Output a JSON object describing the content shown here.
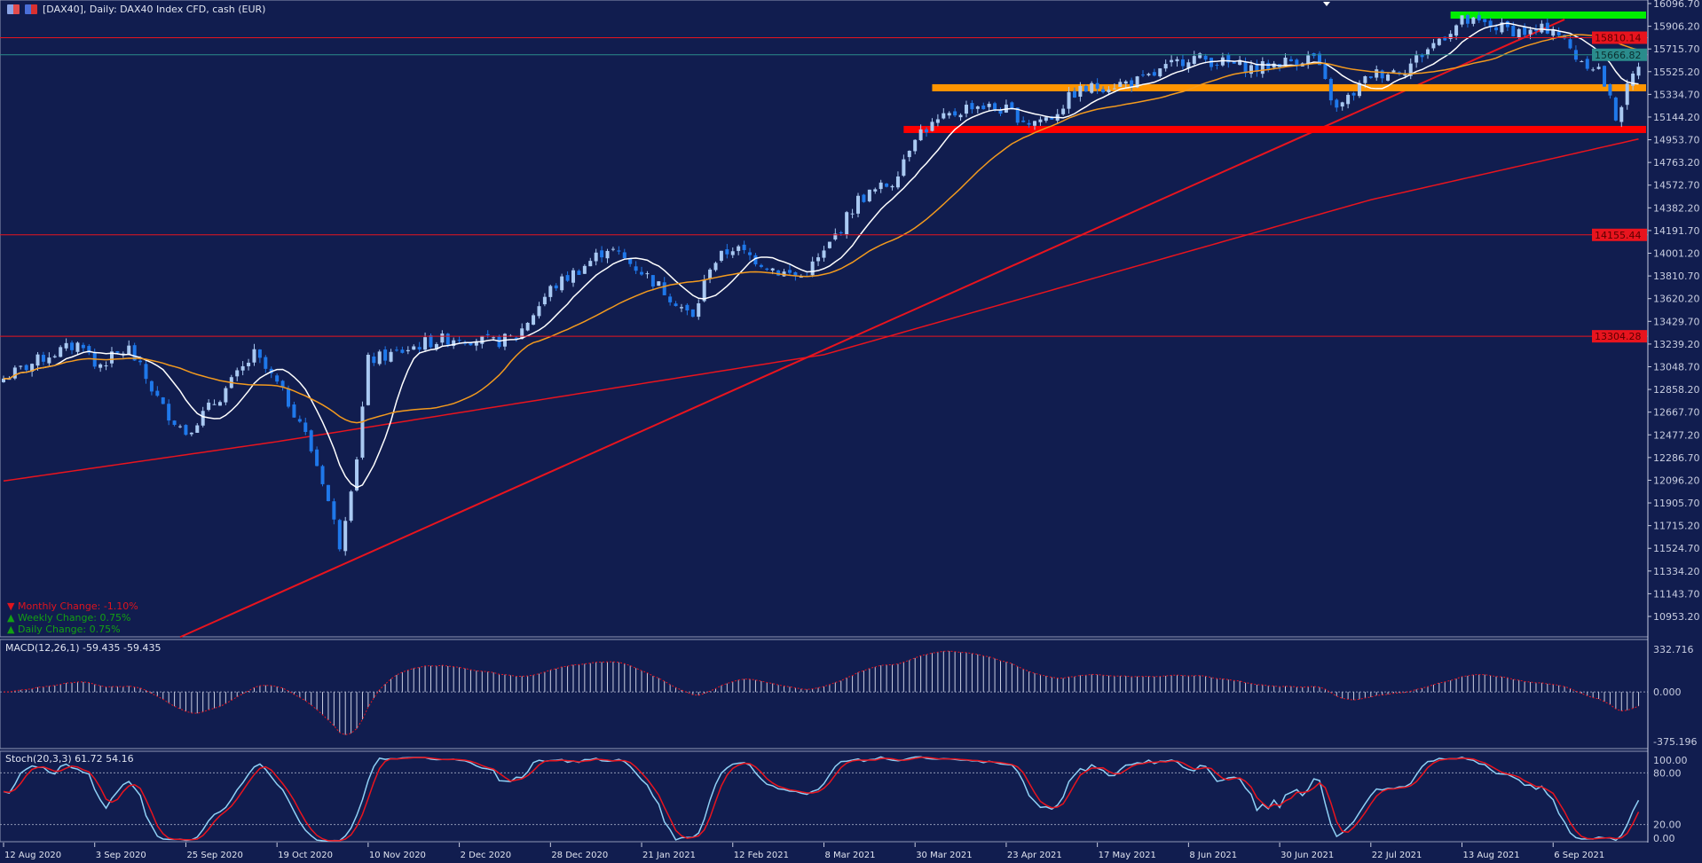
{
  "header": {
    "title": "[DAX40], Daily:  DAX40 Index CFD, cash (EUR)"
  },
  "info": {
    "monthly": "Monthly Change: -1.10%",
    "weekly": "Weekly Change: 0.75%",
    "daily": "Daily Change: 0.75%"
  },
  "indicators": {
    "macd_label": "MACD(12,26,1) -59.435 -59.435",
    "stoch_label": "Stoch(20,3,3) 61.72 54.16"
  },
  "colors": {
    "background": "#111d4f",
    "bull": "#a9c9f2",
    "bear": "#1f78ea",
    "ma_fast": "#ffffff",
    "ma_slow": "#f39a1e",
    "ma_long": "#e8141e",
    "trend": "#e8141e",
    "green_zone": "#00ee00",
    "orange_zone": "#ff9500",
    "red_zone": "#ff0000",
    "bid_line": "#2a8c8c"
  },
  "chart_data": {
    "type": "candlestick",
    "symbol": "DAX40",
    "timeframe": "Daily",
    "ylim": [
      10953.2,
      16096.7
    ],
    "y_ticks": [
      "16096.70",
      "15906.20",
      "15715.70",
      "15525.20",
      "15334.70",
      "15144.20",
      "14953.70",
      "14763.20",
      "14572.70",
      "14382.20",
      "14191.70",
      "14001.20",
      "13810.70",
      "13620.20",
      "13429.70",
      "13239.20",
      "13048.70",
      "12858.20",
      "12667.70",
      "12477.20",
      "12286.70",
      "12096.20",
      "11905.70",
      "11715.20",
      "11524.70",
      "11334.20",
      "11143.70",
      "10953.20"
    ],
    "x_ticks": [
      {
        "bar": 0,
        "label": "12 Aug 2020"
      },
      {
        "bar": 16,
        "label": "3 Sep 2020"
      },
      {
        "bar": 32,
        "label": "25 Sep 2020"
      },
      {
        "bar": 48,
        "label": "19 Oct 2020"
      },
      {
        "bar": 64,
        "label": "10 Nov 2020"
      },
      {
        "bar": 80,
        "label": "2 Dec 2020"
      },
      {
        "bar": 96,
        "label": "28 Dec 2020"
      },
      {
        "bar": 112,
        "label": "21 Jan 2021"
      },
      {
        "bar": 128,
        "label": "12 Feb 2021"
      },
      {
        "bar": 144,
        "label": "8 Mar 2021"
      },
      {
        "bar": 160,
        "label": "30 Mar 2021"
      },
      {
        "bar": 176,
        "label": "23 Apr 2021"
      },
      {
        "bar": 192,
        "label": "17 May 2021"
      },
      {
        "bar": 208,
        "label": "8 Jun 2021"
      },
      {
        "bar": 224,
        "label": "30 Jun 2021"
      },
      {
        "bar": 240,
        "label": "22 Jul 2021"
      },
      {
        "bar": 256,
        "label": "13 Aug 2021"
      },
      {
        "bar": 272,
        "label": "6 Sep 2021"
      }
    ],
    "bars": 288,
    "close_anchors": [
      [
        0,
        12950
      ],
      [
        8,
        13150
      ],
      [
        14,
        13250
      ],
      [
        16,
        13050
      ],
      [
        22,
        13200
      ],
      [
        28,
        12700
      ],
      [
        32,
        12500
      ],
      [
        38,
        12800
      ],
      [
        44,
        13150
      ],
      [
        48,
        12900
      ],
      [
        52,
        12600
      ],
      [
        56,
        12100
      ],
      [
        59,
        11560
      ],
      [
        62,
        12300
      ],
      [
        64,
        13100
      ],
      [
        68,
        13150
      ],
      [
        74,
        13250
      ],
      [
        80,
        13300
      ],
      [
        86,
        13250
      ],
      [
        90,
        13300
      ],
      [
        96,
        13700
      ],
      [
        102,
        13900
      ],
      [
        106,
        14050
      ],
      [
        112,
        13850
      ],
      [
        118,
        13600
      ],
      [
        121,
        13450
      ],
      [
        124,
        13900
      ],
      [
        128,
        14050
      ],
      [
        132,
        13950
      ],
      [
        136,
        13850
      ],
      [
        140,
        13800
      ],
      [
        144,
        14000
      ],
      [
        150,
        14450
      ],
      [
        156,
        14600
      ],
      [
        160,
        15000
      ],
      [
        166,
        15150
      ],
      [
        170,
        15250
      ],
      [
        176,
        15200
      ],
      [
        180,
        15100
      ],
      [
        184,
        15150
      ],
      [
        188,
        15350
      ],
      [
        192,
        15400
      ],
      [
        200,
        15450
      ],
      [
        208,
        15650
      ],
      [
        214,
        15600
      ],
      [
        220,
        15550
      ],
      [
        224,
        15600
      ],
      [
        230,
        15650
      ],
      [
        234,
        15200
      ],
      [
        240,
        15500
      ],
      [
        246,
        15550
      ],
      [
        252,
        15800
      ],
      [
        256,
        15950
      ],
      [
        262,
        15900
      ],
      [
        268,
        15850
      ],
      [
        272,
        15900
      ],
      [
        276,
        15650
      ],
      [
        280,
        15550
      ],
      [
        283,
        15150
      ],
      [
        287,
        15600
      ]
    ],
    "ma_fast_period": 10,
    "ma_slow_period": 30,
    "ma_long_anchors": [
      [
        0,
        12090
      ],
      [
        48,
        12420
      ],
      [
        144,
        13150
      ],
      [
        240,
        14450
      ],
      [
        287,
        14960
      ]
    ],
    "trendline": {
      "from": [
        31,
        10780
      ],
      "to": [
        274,
        15963
      ]
    },
    "zones": [
      {
        "name": "green",
        "price": 16000,
        "from_bar": 254
      },
      {
        "name": "orange",
        "price": 15390,
        "from_bar": 163
      },
      {
        "name": "red",
        "price": 15040,
        "from_bar": 158
      }
    ],
    "levels": [
      {
        "price": 15810.14,
        "label": "15810.14",
        "color": "#e8141e"
      },
      {
        "price": 15666.82,
        "label": "15666.82",
        "color": "#2a8c8c"
      },
      {
        "price": 14155.44,
        "label": "14155.44",
        "color": "#e8141e"
      },
      {
        "price": 13304.28,
        "label": "13304.28",
        "color": "#e8141e"
      }
    ],
    "macd": {
      "fast": 12,
      "slow": 26,
      "signal": 1,
      "ylim": [
        -375.196,
        332.716
      ],
      "ticks": [
        "332.716",
        "0.000",
        "-375.196"
      ]
    },
    "stoch": {
      "k": 20,
      "d": 3,
      "slowing": 3,
      "ticks": [
        "100.00",
        "80.00",
        "20.00",
        "0.00"
      ]
    }
  }
}
